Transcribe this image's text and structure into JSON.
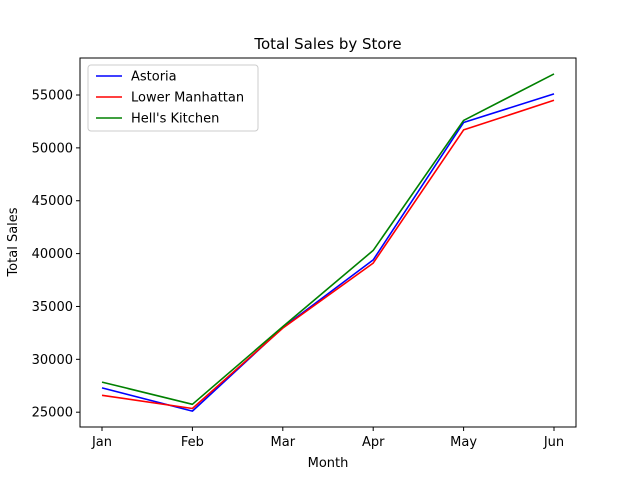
{
  "chart_data": {
    "type": "line",
    "title": "Total Sales by Store",
    "xlabel": "Month",
    "ylabel": "Total Sales",
    "categories": [
      "Jan",
      "Feb",
      "Mar",
      "Apr",
      "May",
      "Jun"
    ],
    "yticks": [
      25000,
      30000,
      35000,
      40000,
      45000,
      50000,
      55000
    ],
    "ylim": [
      23600,
      58500
    ],
    "grid": false,
    "legend_position": "top-left",
    "series": [
      {
        "name": "Astoria",
        "color": "#0000ff",
        "values": [
          27300,
          25100,
          33000,
          39400,
          52400,
          55100
        ]
      },
      {
        "name": "Lower Manhattan",
        "color": "#ff0000",
        "values": [
          26600,
          25350,
          32950,
          39100,
          51700,
          54500
        ]
      },
      {
        "name": "Hell's Kitchen",
        "color": "#008000",
        "values": [
          27850,
          25750,
          33100,
          40300,
          52600,
          57000
        ]
      }
    ]
  }
}
